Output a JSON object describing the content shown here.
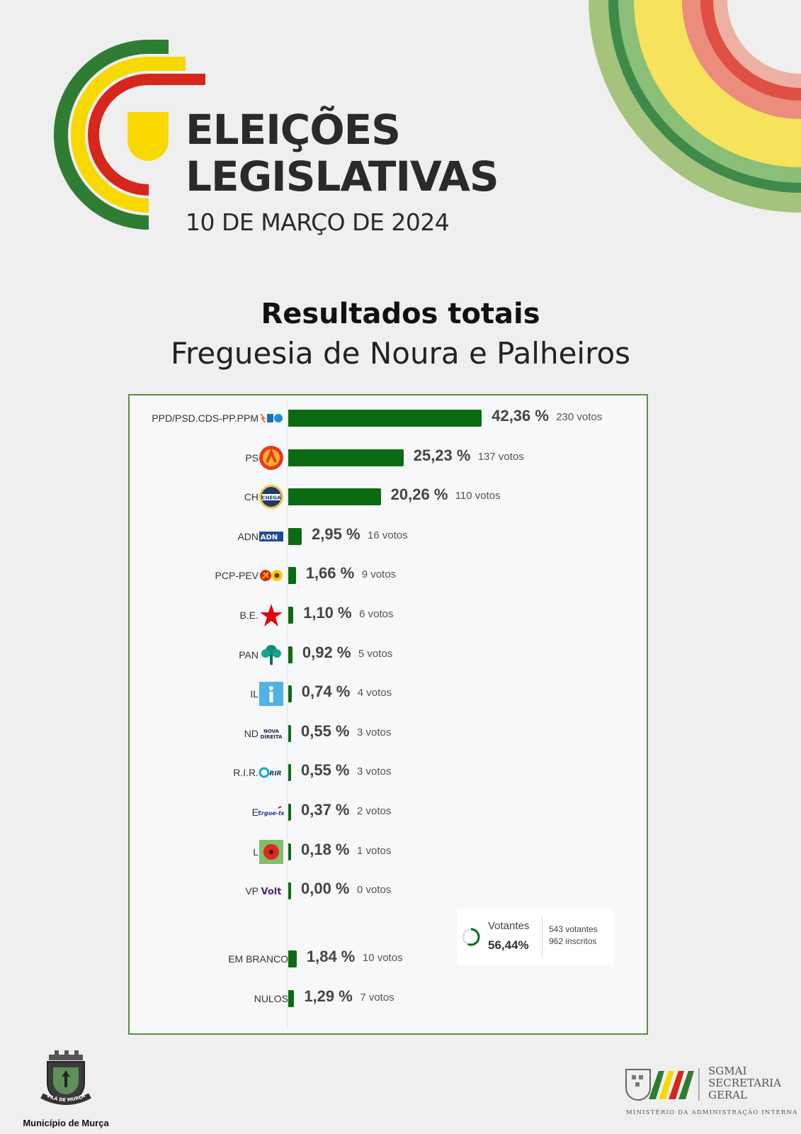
{
  "header": {
    "title_line1": "ELEIÇÕES",
    "title_line2": "LEGISLATIVAS",
    "date": "10 DE MARÇO DE 2024"
  },
  "headline": {
    "title": "Resultados totais",
    "subtitle": "Freguesia de Noura e Palheiros"
  },
  "colors": {
    "bar": "#0b6b12",
    "panel_border": "#5a8f44",
    "green": "#2e7d32",
    "yellow": "#f7d900",
    "red": "#d7261c"
  },
  "chart_data": {
    "type": "bar",
    "orientation": "horizontal",
    "title": "Resultados totais",
    "subtitle": "Freguesia de Noura e Palheiros",
    "xlabel": "",
    "ylabel": "",
    "grid": false,
    "categories": [
      "PPD/PSD.CDS-PP.PPM",
      "PS",
      "CH",
      "ADN",
      "PCP-PEV",
      "B.E.",
      "PAN",
      "IL",
      "ND",
      "R.I.R.",
      "E",
      "L",
      "VP"
    ],
    "values": [
      42.36,
      25.23,
      20.26,
      2.95,
      1.66,
      1.1,
      0.92,
      0.74,
      0.55,
      0.55,
      0.37,
      0.18,
      0.0
    ],
    "value_labels": [
      "42,36 %",
      "25,23 %",
      "20,26 %",
      "2,95 %",
      "1,66 %",
      "1,10 %",
      "0,92 %",
      "0,74 %",
      "0,55 %",
      "0,55 %",
      "0,37 %",
      "0,18 %",
      "0,00 %"
    ],
    "votes": [
      "230 votos",
      "137 votos",
      "110 votos",
      "16 votos",
      "9 votos",
      "6 votos",
      "5 votos",
      "4 votos",
      "3 votos",
      "3 votos",
      "2 votos",
      "1 votos",
      "0 votos"
    ],
    "logo_icons": [
      "ad-coalition-logo-icon",
      "ps-logo-icon",
      "chega-logo-icon",
      "adn-logo-icon",
      "cdu-logo-icon",
      "be-star-logo-icon",
      "pan-tree-logo-icon",
      "il-logo-icon",
      "nova-direita-logo-icon",
      "rir-logo-icon",
      "ergue-te-logo-icon",
      "livre-poppy-logo-icon",
      "volt-logo-icon"
    ],
    "extra": {
      "categories": [
        "EM BRANCO",
        "NULOS"
      ],
      "values": [
        1.84,
        1.29
      ],
      "value_labels": [
        "1,84 %",
        "1,29 %"
      ],
      "votes": [
        "10 votos",
        "7 votos"
      ]
    },
    "turnout": {
      "label": "Votantes",
      "value": 56.44,
      "value_label": "56,44%",
      "voters": "543 votantes",
      "registered": "962 inscritos"
    }
  },
  "footer": {
    "municipality": "Município de Murça",
    "seal_text": "VILA DE MURÇA",
    "sg_line1": "SGMAI",
    "sg_line2": "SECRETARIA",
    "sg_line3": "GERAL",
    "ministry": "MINISTÉRIO DA ADMINISTRAÇÃO INTERNA"
  }
}
